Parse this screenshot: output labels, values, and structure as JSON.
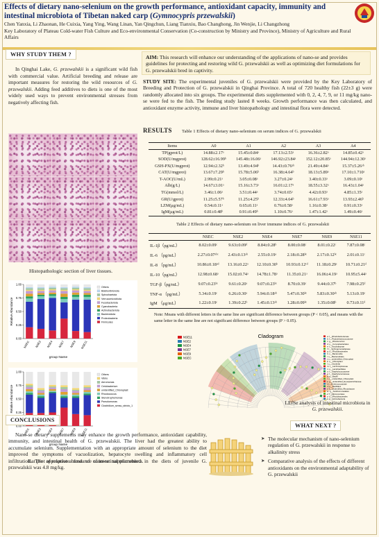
{
  "header": {
    "title_main": "Effects of dietary nano-selenium on the growth performance, antioxidant capacity, immunity and intestinal microbiota of Tibetan naked carp (",
    "title_species": "Gymnocypris przewalskii",
    "title_close": ")",
    "authors": "Chen Yanxia, Li Zhaonan, He Cuixia, Yang Ying, Wang Linan, Yan Qingchun, Liang Tianxiu, Bao Changhong, Jin Wenjie, Li Changzhong",
    "affiliation": "Key Laboratory of Plateau Cold-water Fish Culture and Eco-environmental Conservation (Co-construction by Ministry and Province), Ministry of Agriculture and Rural Affairs"
  },
  "why": {
    "heading": "WHY STUDY THEM ?",
    "text_a": "In Qinghai Lake, ",
    "text_species": "G. przewalskii",
    "text_b": " is a significant wild fish with commercial value. Artificial breeding and release are important measures for restoring the wild resources of ",
    "text_species2": "G. przewalskii",
    "text_c": ". Adding feed additives to diets is one of the most widely used ways to prevent environmental stresses from negatively affecting fish."
  },
  "aim": {
    "label": "AIM:",
    "text": " This research will enhance our understanding of the applications of nano-se and provides guidelines for protecting and restoring wild G. przewalskii as well as optimizing diet formulations for G. przewalskii bred in captivity."
  },
  "study": {
    "label": "STUDY SITE:",
    "text": " The experimental juveniles of G. przewalskii were provided by the Key Laboratory of Breeding and Protection of G. przewalskii in Qinghai Province. A total of 720 healthy fish (22±3 g) were randomly allocated into six groups. The experimental diets supplemented with 0, 2, 4, 7, 9, or 11 mg/kg nano-se were fed to the fish. The feeding study lasted 8 weeks. Growth performance was then calculated, and antioxidant enzyme activity, immune and liver histopathology and intestinal flora were detected."
  },
  "results": {
    "heading": "RESULTS",
    "table1_title": "Table 1 Effects of dietary nano-selenium on serum indices of G. przewalskii",
    "table1_headers": [
      "Items",
      "A0",
      "A1",
      "A2",
      "A3",
      "A4"
    ],
    "table1_rows": [
      [
        "TP(gprot/L)",
        "14.88±2.17ᵃ",
        "15.45±0.84ᵃ",
        "17.13±2.53ᵃ",
        "16.36±2.82ᵃ",
        "14.85±0.42ᵃ"
      ],
      [
        "SOD(U/mgprot)",
        "128.62±16.99ᵇ",
        "145.48±16.06ᵃ",
        "146.92±23.84ᵃ",
        "152.12±20.85ᵃ",
        "144.94±12.30ᵃ"
      ],
      [
        "GSH-PX(U/mgprot)",
        "12.94±2.32ᵇ",
        "13.49±4.94ᵇ",
        "14.43±0.76ᵃᵇ",
        "21.49±4.84ᵃ",
        "15.37±5.26ᵃᵇ"
      ],
      [
        "CAT(U/mgprot)",
        "13.67±7.29ᵇ",
        "15.78±5.06ᵇ",
        "16.38±4.64ᵇ",
        "18.13±5.89ᵃ",
        "17.10±1.710ᵃ"
      ],
      [
        "T-AOC(U/mL)",
        "2.99±0.21ᵃ",
        "3.05±0.08ᵃ",
        "3.27±0.24ᵃ",
        "3.40±0.33ᵃ",
        "3.09±0.10ᵃ"
      ],
      [
        "Alb(g/L)",
        "14.67±3.01ᵃ",
        "15.16±3.73ᵃ",
        "16.01±2.17ᵃ",
        "18.55±3.32ᵃ",
        "16.43±1.04ᵃ"
      ],
      [
        "TG(mmol/L)",
        "3.46±1.06ᵃ",
        "3.51±0.44ᵃ",
        "3.74±0.65ᵃ",
        "4.42±0.93ᵃ",
        "4.85±1.35ᵃ"
      ],
      [
        "GR(U/gprot)",
        "11.25±5.57ᵇ",
        "11.25±4.25ᵇ",
        "12.33±4.64ᵇ",
        "16.61±7.93ᵃ",
        "13.93±2.46ᵇ"
      ],
      [
        "LZM(μg/mL)",
        "0.54±0.11ᵃ",
        "0.65±0.11ᵃ",
        "0.76±0.58ᵃ",
        "1.16±0.38ᵃ",
        "0.91±0.33ᵃ"
      ],
      [
        "IgM(μg/mL)",
        "0.81±0.48ᵇ",
        "0.91±0.49ᵇ",
        "1.10±0.76ᵃ",
        "1.47±1.42ᵃ",
        "1.49±0.46ᵃ"
      ]
    ],
    "table2_title": "Table 2 Effects of dietary nano-selenium on liver immune indices of G. przewalskii",
    "table2_headers": [
      "",
      "NSEC",
      "NSE2",
      "NSE4",
      "NSE7",
      "NSE9",
      "NSE11"
    ],
    "table2_rows": [
      [
        "IL-1β（pg/mL）",
        "8.02±0.09ᶜ",
        "9.63±0.09ᵈ",
        "8.84±0.28ᵇ",
        "8.00±0.08ᶜ",
        "8.01±0.22ᶜ",
        "7.87±0.08ᶜ"
      ],
      [
        "IL-6 （pg/mL）",
        "2.27±0.07ᵃᵇᶜ",
        "2.43±0.13ᵃᵇ",
        "2.55±0.19ᵃ",
        "2.18±0.28ᵇᶜ",
        "2.17±0.12ᵇᶜ",
        "2.01±0.11ᶜ"
      ],
      [
        "IL-8 （pg/mL）",
        "10.86±0.18ᵃᵈ",
        "13.16±0.22ᵃ",
        "12.10±0.30ᵇ",
        "10.93±0.12ᶜᵈ",
        "11.18±0.29ᶜ",
        "10.71±0.21ᵈ"
      ],
      [
        "IL-10（pg/mL）",
        "12.98±0.68ᵃ",
        "15.02±0.74ᵃ",
        "14.78±1.78ᵃ",
        "11.35±0.21ᵃ",
        "16.06±4.19ᵃ",
        "10.95±5.44ᵃ"
      ],
      [
        "TGF-β（pg/mL）",
        "9.07±0.23ᵇᶜ",
        "9.61±0.20ᵃ",
        "9.07±0.23ᵇᶜ",
        "8.70±0.39ᶜ",
        "9.44±0.37ᵇ",
        "7.98±0.25ᵈ"
      ],
      [
        "TNF-α （pg/mL）",
        "5.34±0.19ᶜ",
        "6.26±0.30ᵃ",
        "5.94±0.18ᵃᵇ",
        "5.47±0.30ᵇᶜ",
        "5.83±0.30ᵃᵇ",
        "5.13±0.19ᶜ"
      ],
      [
        "IgM （μg/mL）",
        "1.22±0.19ᶜ",
        "1.39±0.22ᵇ",
        "1.45±0.13ᵃᵇ",
        "1.28±0.09ᵇᶜ",
        "1.35±0.08ᵇ",
        "0.73±0.11ᵈ"
      ]
    ],
    "note": "Note: Means with different letters in the same line are significant difference between groups (P < 0.05), and means with the same letter in the same line are not significant difference between groups (P > 0.05)."
  },
  "histo_caption": "Histopathologic section of liver tissues.",
  "bar_caption": "Bar plot of relative abundance of intestinal microbiota.",
  "lefse": {
    "title": "Cladogram",
    "caption_a": "LEfSe analysis of intestinal microbiota in ",
    "caption_species": "G. przewalskii",
    "caption_b": ".",
    "groups": [
      "NSE11",
      "NSE2",
      "NSE4",
      "NSE7",
      "NSE9",
      "NSEC"
    ],
    "group_colors": [
      "#d7191c",
      "#2c7bb6",
      "#1a9641",
      "#7b3294",
      "#e66101",
      "#4dac26"
    ],
    "features": [
      "a: f__Rhodobacteraceae",
      "b: f__Peptostreptococcaceae",
      "c: g__Rhodococcus",
      "d: o__Corynebacteriales",
      "e: f__Nocardiaceae",
      "f: f__Sphingomonadaceae",
      "g: o__Rhodobacterales",
      "h: c__Bacteroidia",
      "i: o__Bacteroidales",
      "j: c__unidentified_Chloroplast",
      "k: o__Chloroplast",
      "l: c__Clostridia",
      "m: f__Lachnospiraceae",
      "n: o__Lactobacillales",
      "o: f__Staphylococcaceae",
      "p: f__Staphylococcaceae",
      "q: g__Bacilli",
      "r: c__unidentified_Chloroplast",
      "s: g__unidentified_Erysipelotrichaceae",
      "t: f__Enterococcaceae",
      "u: o__Bacillales",
      "v: f__unidentified_Rhodobacter",
      "w: o__Xanthomonadales",
      "x: f__Micrococcales",
      "y: o__Rhodobacterales",
      "z: p__Actinobacteria"
    ]
  },
  "chart_data": [
    {
      "type": "bar",
      "title": "",
      "xlabel": "group Name",
      "ylabel": "Relative Abundance",
      "ylim": [
        0,
        1
      ],
      "categories": [
        "NSEC",
        "NSE2",
        "NSE4",
        "NSE7",
        "NSE9",
        "NSE11"
      ],
      "series": [
        {
          "name": "Others",
          "color": "#e8e8e8",
          "values": [
            0.05,
            0.05,
            0.04,
            0.05,
            0.04,
            0.05
          ]
        },
        {
          "name": "Bdellovibrionota",
          "color": "#b9d6f2",
          "values": [
            0.02,
            0.02,
            0.02,
            0.02,
            0.02,
            0.02
          ]
        },
        {
          "name": "Spirochaetota",
          "color": "#a2c7a0",
          "values": [
            0.03,
            0.03,
            0.03,
            0.03,
            0.03,
            0.03
          ]
        },
        {
          "name": "Verrucomicrobiota",
          "color": "#f5d76e",
          "values": [
            0.02,
            0.02,
            0.02,
            0.02,
            0.02,
            0.02
          ]
        },
        {
          "name": "Fusobacteriota",
          "color": "#c39bd3",
          "values": [
            0.05,
            0.04,
            0.04,
            0.05,
            0.04,
            0.04
          ]
        },
        {
          "name": "Cyanobacteria",
          "color": "#e0a030",
          "values": [
            0.05,
            0.03,
            0.03,
            0.06,
            0.04,
            0.03
          ]
        },
        {
          "name": "Actinobacteriota",
          "color": "#2ca25f",
          "values": [
            0.04,
            0.03,
            0.03,
            0.04,
            0.04,
            0.04
          ]
        },
        {
          "name": "Bacteroidota",
          "color": "#7fcdbb",
          "values": [
            0.06,
            0.05,
            0.04,
            0.06,
            0.05,
            0.05
          ]
        },
        {
          "name": "Proteobacteria",
          "color": "#2b35b8",
          "values": [
            0.47,
            0.55,
            0.6,
            0.3,
            0.58,
            0.6
          ]
        },
        {
          "name": "Firmicutes",
          "color": "#d7263d",
          "values": [
            0.21,
            0.18,
            0.15,
            0.37,
            0.14,
            0.12
          ]
        }
      ]
    },
    {
      "type": "bar",
      "title": "",
      "xlabel": "group Name",
      "ylabel": "Relative Abundance",
      "ylim": [
        0,
        1
      ],
      "categories": [
        "NSEC",
        "NSE2",
        "NSE4",
        "NSE7",
        "NSE9",
        "NSE11"
      ],
      "series": [
        {
          "name": "Others",
          "color": "#e8e8e8",
          "values": [
            0.22,
            0.3,
            0.24,
            0.25,
            0.3,
            0.25
          ]
        },
        {
          "name": "Vibrio",
          "color": "#f5d76e",
          "values": [
            0.03,
            0.03,
            0.03,
            0.03,
            0.03,
            0.03
          ]
        },
        {
          "name": "Aeromonas",
          "color": "#a2c7a0",
          "values": [
            0.03,
            0.02,
            0.02,
            0.04,
            0.02,
            0.02
          ]
        },
        {
          "name": "Cetobacterium",
          "color": "#c39bd3",
          "values": [
            0.04,
            0.04,
            0.03,
            0.05,
            0.04,
            0.04
          ]
        },
        {
          "name": "unidentified_Chloroplast",
          "color": "#e0a030",
          "values": [
            0.04,
            0.03,
            0.03,
            0.05,
            0.03,
            0.03
          ]
        },
        {
          "name": "Rhodococcus",
          "color": "#7fcdbb",
          "values": [
            0.03,
            0.03,
            0.02,
            0.03,
            0.03,
            0.03
          ]
        },
        {
          "name": "Stenotrophomonas",
          "color": "#2ca25f",
          "values": [
            0.03,
            0.03,
            0.02,
            0.03,
            0.03,
            0.03
          ]
        },
        {
          "name": "Pseudomonas",
          "color": "#2b35b8",
          "values": [
            0.34,
            0.28,
            0.36,
            0.18,
            0.3,
            0.37
          ]
        },
        {
          "name": "Clostridium_sensu_stricto_1",
          "color": "#d7263d",
          "values": [
            0.24,
            0.24,
            0.25,
            0.34,
            0.22,
            0.2
          ]
        }
      ]
    }
  ],
  "conclusions": {
    "heading": "CONCLUSIONS",
    "text": "Nano-se dietary supplements may enhance the growth performance, antioxidant capability, immunity, and intestinal health of G. przewalskii. The liver had the greatest ability to accumulate selenium. Supplementation with an appropriate amount of selenium to the diet improved the symptoms of vacuolization, hepatocyte swelling and inflammatory cell infiltration. The appropriate dose of nano-se supplemented in the diets of juvenile G. przewalskii was 4.8 mg/kg."
  },
  "whatnext": {
    "heading": "WHAT NEXT ?",
    "items": [
      "The molecular mechanism of nano-selenium regulation of G. przewalskii in response to alkalinity stress",
      "Comparative analysis of the effects of different antioxidants on the environmental adaptability of G. przewalskii"
    ]
  },
  "colors": {
    "title": "#142b6b",
    "band": "#e7c35a",
    "background": "#fdf8ea"
  }
}
